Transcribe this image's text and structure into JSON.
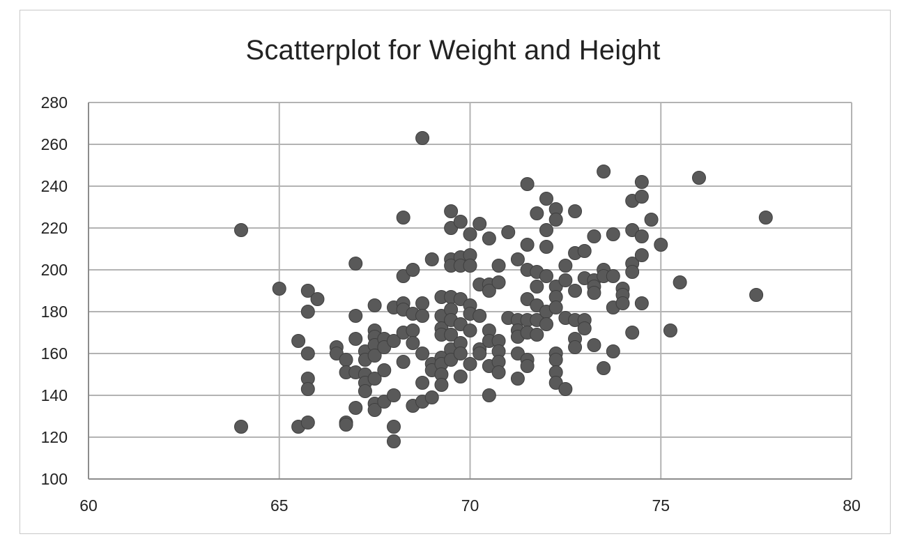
{
  "chart_data": {
    "type": "scatter",
    "title": "Scatterplot for Weight and Height",
    "xlabel": "",
    "ylabel": "",
    "xlim": [
      60,
      80
    ],
    "ylim": [
      100,
      280
    ],
    "x_ticks": [
      "60",
      "65",
      "70",
      "75",
      "80"
    ],
    "y_ticks": [
      "100",
      "120",
      "140",
      "160",
      "180",
      "200",
      "220",
      "240",
      "260",
      "280"
    ],
    "grid": true,
    "marker_color": "#595959",
    "points": [
      [
        64,
        219
      ],
      [
        64,
        125
      ],
      [
        65,
        191
      ],
      [
        65.5,
        166
      ],
      [
        65.5,
        125
      ],
      [
        65.75,
        190
      ],
      [
        65.75,
        180
      ],
      [
        65.75,
        160
      ],
      [
        65.75,
        148
      ],
      [
        65.75,
        143
      ],
      [
        65.75,
        127
      ],
      [
        66,
        186
      ],
      [
        66.5,
        163
      ],
      [
        66.5,
        160
      ],
      [
        66.75,
        157
      ],
      [
        66.75,
        151
      ],
      [
        66.75,
        127
      ],
      [
        66.75,
        126
      ],
      [
        67,
        203
      ],
      [
        67,
        178
      ],
      [
        67,
        167
      ],
      [
        67,
        151
      ],
      [
        67,
        134
      ],
      [
        67.25,
        161
      ],
      [
        67.25,
        157
      ],
      [
        67.25,
        150
      ],
      [
        67.25,
        146
      ],
      [
        67.25,
        142
      ],
      [
        67.5,
        183
      ],
      [
        67.5,
        171
      ],
      [
        67.5,
        168
      ],
      [
        67.5,
        164
      ],
      [
        67.5,
        159
      ],
      [
        67.5,
        148
      ],
      [
        67.5,
        136
      ],
      [
        67.5,
        133
      ],
      [
        67.75,
        167
      ],
      [
        67.75,
        163
      ],
      [
        67.75,
        152
      ],
      [
        67.75,
        137
      ],
      [
        68,
        182
      ],
      [
        68,
        166
      ],
      [
        68,
        140
      ],
      [
        68,
        125
      ],
      [
        68,
        118
      ],
      [
        68.25,
        225
      ],
      [
        68.25,
        197
      ],
      [
        68.25,
        184
      ],
      [
        68.25,
        181
      ],
      [
        68.25,
        170
      ],
      [
        68.25,
        156
      ],
      [
        68.5,
        200
      ],
      [
        68.5,
        179
      ],
      [
        68.5,
        171
      ],
      [
        68.5,
        165
      ],
      [
        68.5,
        135
      ],
      [
        68.75,
        263
      ],
      [
        68.75,
        184
      ],
      [
        68.75,
        178
      ],
      [
        68.75,
        160
      ],
      [
        68.75,
        146
      ],
      [
        68.75,
        137
      ],
      [
        69,
        205
      ],
      [
        69,
        155
      ],
      [
        69,
        152
      ],
      [
        69,
        139
      ],
      [
        69.25,
        187
      ],
      [
        69.25,
        178
      ],
      [
        69.25,
        172
      ],
      [
        69.25,
        169
      ],
      [
        69.25,
        158
      ],
      [
        69.25,
        155
      ],
      [
        69.25,
        150
      ],
      [
        69.25,
        145
      ],
      [
        69.5,
        228
      ],
      [
        69.5,
        220
      ],
      [
        69.5,
        205
      ],
      [
        69.5,
        202
      ],
      [
        69.5,
        187
      ],
      [
        69.5,
        181
      ],
      [
        69.5,
        176
      ],
      [
        69.5,
        169
      ],
      [
        69.5,
        162
      ],
      [
        69.5,
        157
      ],
      [
        69.75,
        223
      ],
      [
        69.75,
        206
      ],
      [
        69.75,
        202
      ],
      [
        69.75,
        186
      ],
      [
        69.75,
        174
      ],
      [
        69.75,
        165
      ],
      [
        69.75,
        160
      ],
      [
        69.75,
        149
      ],
      [
        70,
        217
      ],
      [
        70,
        207
      ],
      [
        70,
        202
      ],
      [
        70,
        183
      ],
      [
        70,
        179
      ],
      [
        70,
        171
      ],
      [
        70,
        155
      ],
      [
        70.25,
        222
      ],
      [
        70.25,
        193
      ],
      [
        70.25,
        178
      ],
      [
        70.25,
        162
      ],
      [
        70.25,
        160
      ],
      [
        70.5,
        215
      ],
      [
        70.5,
        193
      ],
      [
        70.5,
        190
      ],
      [
        70.5,
        171
      ],
      [
        70.5,
        166
      ],
      [
        70.5,
        154
      ],
      [
        70.5,
        140
      ],
      [
        70.75,
        202
      ],
      [
        70.75,
        194
      ],
      [
        70.75,
        166
      ],
      [
        70.75,
        161
      ],
      [
        70.75,
        156
      ],
      [
        70.75,
        151
      ],
      [
        71,
        218
      ],
      [
        71,
        177
      ],
      [
        71.25,
        205
      ],
      [
        71.25,
        176
      ],
      [
        71.25,
        171
      ],
      [
        71.25,
        168
      ],
      [
        71.25,
        160
      ],
      [
        71.25,
        148
      ],
      [
        71.5,
        241
      ],
      [
        71.5,
        212
      ],
      [
        71.5,
        200
      ],
      [
        71.5,
        186
      ],
      [
        71.5,
        176
      ],
      [
        71.5,
        170
      ],
      [
        71.5,
        157
      ],
      [
        71.5,
        154
      ],
      [
        71.75,
        227
      ],
      [
        71.75,
        199
      ],
      [
        71.75,
        192
      ],
      [
        71.75,
        183
      ],
      [
        71.75,
        176
      ],
      [
        71.75,
        169
      ],
      [
        72,
        234
      ],
      [
        72,
        219
      ],
      [
        72,
        211
      ],
      [
        72,
        197
      ],
      [
        72,
        180
      ],
      [
        72,
        174
      ],
      [
        72.25,
        229
      ],
      [
        72.25,
        224
      ],
      [
        72.25,
        192
      ],
      [
        72.25,
        187
      ],
      [
        72.25,
        182
      ],
      [
        72.25,
        160
      ],
      [
        72.25,
        157
      ],
      [
        72.25,
        151
      ],
      [
        72.25,
        146
      ],
      [
        72.5,
        202
      ],
      [
        72.5,
        195
      ],
      [
        72.5,
        177
      ],
      [
        72.5,
        143
      ],
      [
        72.75,
        228
      ],
      [
        72.75,
        208
      ],
      [
        72.75,
        190
      ],
      [
        72.75,
        176
      ],
      [
        72.75,
        167
      ],
      [
        72.75,
        163
      ],
      [
        73,
        209
      ],
      [
        73,
        196
      ],
      [
        73,
        176
      ],
      [
        73,
        172
      ],
      [
        73.25,
        216
      ],
      [
        73.25,
        195
      ],
      [
        73.25,
        192
      ],
      [
        73.25,
        189
      ],
      [
        73.25,
        164
      ],
      [
        73.5,
        247
      ],
      [
        73.5,
        200
      ],
      [
        73.5,
        197
      ],
      [
        73.5,
        153
      ],
      [
        73.75,
        217
      ],
      [
        73.75,
        197
      ],
      [
        73.75,
        182
      ],
      [
        73.75,
        161
      ],
      [
        74,
        191
      ],
      [
        74,
        188
      ],
      [
        74,
        184
      ],
      [
        74.25,
        233
      ],
      [
        74.25,
        219
      ],
      [
        74.25,
        203
      ],
      [
        74.25,
        199
      ],
      [
        74.25,
        170
      ],
      [
        74.5,
        242
      ],
      [
        74.5,
        235
      ],
      [
        74.5,
        216
      ],
      [
        74.5,
        207
      ],
      [
        74.5,
        184
      ],
      [
        74.75,
        224
      ],
      [
        75,
        212
      ],
      [
        75.25,
        171
      ],
      [
        75.5,
        194
      ],
      [
        76,
        244
      ],
      [
        77.5,
        188
      ],
      [
        77.75,
        225
      ]
    ]
  }
}
